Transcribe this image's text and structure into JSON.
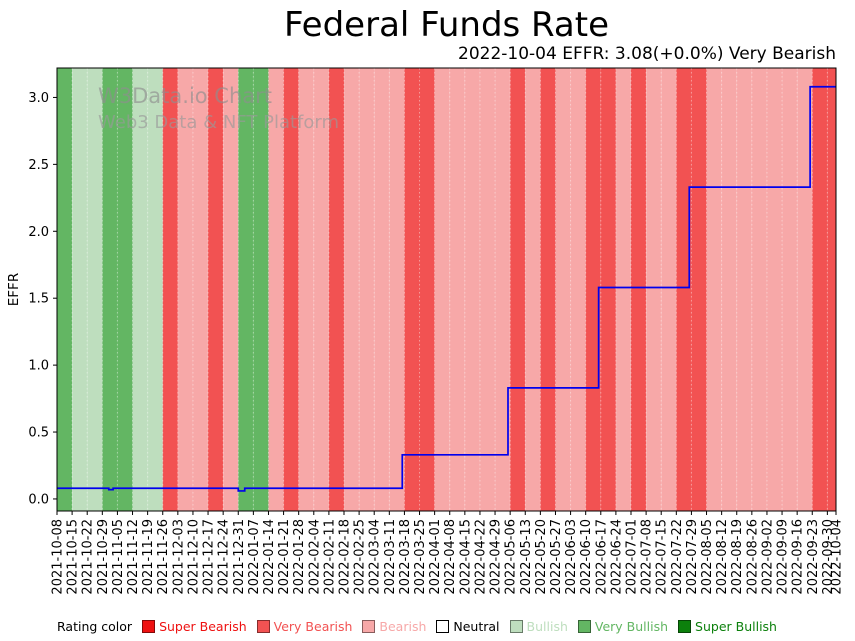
{
  "title": "Federal Funds Rate",
  "subtitle": "2022-10-04 EFFR: 3.08(+0.0%) Very Bearish",
  "watermark": {
    "line1": "W3Data.io Chart",
    "line2": "Web3 Data & NFT Platform"
  },
  "legend": {
    "title": "Rating color",
    "items": [
      {
        "label": "Super Bearish",
        "color": "#ee1111"
      },
      {
        "label": "Very Bearish",
        "color": "#f25252"
      },
      {
        "label": "Bearish",
        "color": "#f7a8a8"
      },
      {
        "label": "Neutral",
        "color": "#ffffff"
      },
      {
        "label": "Bullish",
        "color": "#bedebe"
      },
      {
        "label": "Very Bullish",
        "color": "#63b663"
      },
      {
        "label": "Super Bullish",
        "color": "#0c800c"
      }
    ]
  },
  "chart_data": {
    "type": "line",
    "title": "Federal Funds Rate",
    "xlabel": "",
    "ylabel": "EFFR",
    "ylim": [
      -0.09,
      3.22
    ],
    "y_ticks": [
      0.0,
      0.5,
      1.0,
      1.5,
      2.0,
      2.5,
      3.0
    ],
    "grid": false,
    "legend_position": "bottom",
    "line_color": "#0000ee",
    "x_ticks": [
      "2021-10-08",
      "2021-10-15",
      "2021-10-22",
      "2021-10-29",
      "2021-11-05",
      "2021-11-12",
      "2021-11-19",
      "2021-11-26",
      "2021-12-03",
      "2021-12-10",
      "2021-12-17",
      "2021-12-24",
      "2021-12-31",
      "2022-01-07",
      "2022-01-14",
      "2022-01-21",
      "2022-01-28",
      "2022-02-04",
      "2022-02-11",
      "2022-02-18",
      "2022-02-25",
      "2022-03-04",
      "2022-03-11",
      "2022-03-18",
      "2022-03-25",
      "2022-04-01",
      "2022-04-08",
      "2022-04-15",
      "2022-04-22",
      "2022-04-29",
      "2022-05-06",
      "2022-05-13",
      "2022-05-20",
      "2022-05-27",
      "2022-06-03",
      "2022-06-10",
      "2022-06-17",
      "2022-06-24",
      "2022-07-01",
      "2022-07-08",
      "2022-07-15",
      "2022-07-22",
      "2022-07-29",
      "2022-08-05",
      "2022-08-12",
      "2022-08-19",
      "2022-08-26",
      "2022-09-02",
      "2022-09-09",
      "2022-09-16",
      "2022-09-23",
      "2022-09-30",
      "2022-10-04"
    ],
    "band_ratings": [
      "Very Bullish",
      "Bullish",
      "Bullish",
      "Very Bullish",
      "Very Bullish",
      "Bullish",
      "Bullish",
      "Very Bearish",
      "Bearish",
      "Bearish",
      "Very Bearish",
      "Bearish",
      "Very Bullish",
      "Very Bullish",
      "Bearish",
      "Very Bearish",
      "Bearish",
      "Bearish",
      "Very Bearish",
      "Bearish",
      "Bearish",
      "Bearish",
      "Bearish",
      "Very Bearish",
      "Very Bearish",
      "Bearish",
      "Bearish",
      "Bearish",
      "Bearish",
      "Bearish",
      "Very Bearish",
      "Bearish",
      "Very Bearish",
      "Bearish",
      "Bearish",
      "Very Bearish",
      "Very Bearish",
      "Bearish",
      "Very Bearish",
      "Bearish",
      "Bearish",
      "Very Bearish",
      "Very Bearish",
      "Bearish",
      "Bearish",
      "Bearish",
      "Bearish",
      "Bearish",
      "Bearish",
      "Bearish",
      "Very Bearish",
      "Very Bearish"
    ],
    "series": [
      {
        "name": "EFFR",
        "steps": [
          {
            "date": "2021-10-08",
            "value": 0.08
          },
          {
            "date": "2021-11-01",
            "value": 0.07
          },
          {
            "date": "2021-11-03",
            "value": 0.08
          },
          {
            "date": "2021-12-31",
            "value": 0.06
          },
          {
            "date": "2022-01-03",
            "value": 0.08
          },
          {
            "date": "2022-03-17",
            "value": 0.33
          },
          {
            "date": "2022-05-05",
            "value": 0.83
          },
          {
            "date": "2022-06-16",
            "value": 1.58
          },
          {
            "date": "2022-07-28",
            "value": 2.33
          },
          {
            "date": "2022-09-22",
            "value": 3.08
          }
        ],
        "end_date": "2022-10-04",
        "last_value": 3.08
      }
    ]
  }
}
